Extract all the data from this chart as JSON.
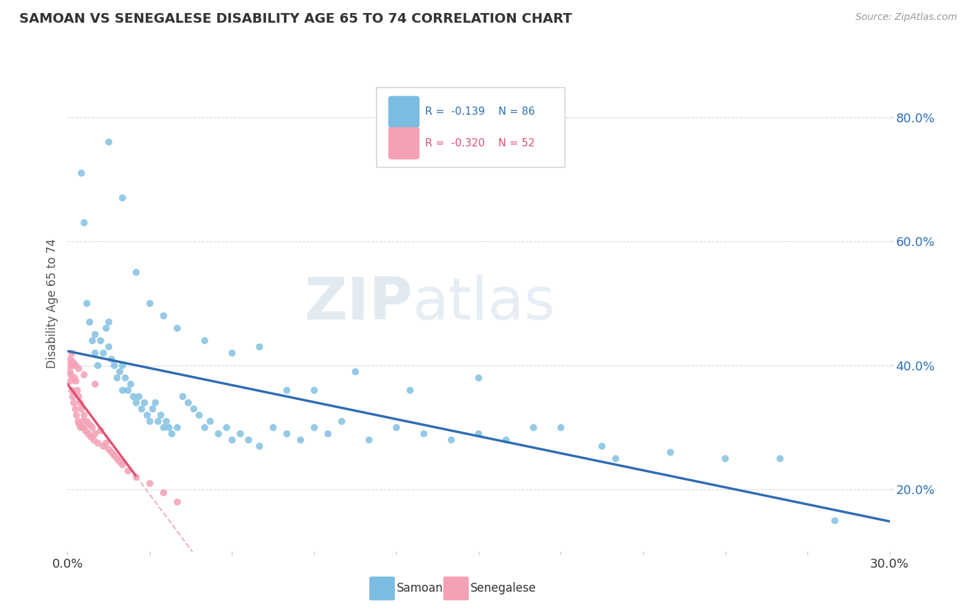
{
  "title": "SAMOAN VS SENEGALESE DISABILITY AGE 65 TO 74 CORRELATION CHART",
  "source_text": "Source: ZipAtlas.com",
  "ylabel": "Disability Age 65 to 74",
  "xlim": [
    0.0,
    30.0
  ],
  "ylim": [
    10.0,
    90.0
  ],
  "yticks": [
    20.0,
    40.0,
    60.0,
    80.0
  ],
  "xticks": [
    0.0,
    3.0,
    6.0,
    9.0,
    12.0,
    15.0,
    18.0,
    21.0,
    24.0,
    27.0,
    30.0
  ],
  "samoan_color": "#7bbde0",
  "senegalese_color": "#f4a0b5",
  "samoan_line_color": "#2e6db4",
  "senegalese_line_color": "#e05070",
  "senegalese_dashed_color": "#f0b0c0",
  "watermark_zip": "ZIP",
  "watermark_atlas": "atlas",
  "samoan_x": [
    0.5,
    0.6,
    0.7,
    0.8,
    0.9,
    1.0,
    1.0,
    1.1,
    1.2,
    1.3,
    1.4,
    1.5,
    1.5,
    1.6,
    1.7,
    1.8,
    1.9,
    2.0,
    2.0,
    2.1,
    2.2,
    2.3,
    2.4,
    2.5,
    2.6,
    2.7,
    2.8,
    2.9,
    3.0,
    3.1,
    3.2,
    3.3,
    3.4,
    3.5,
    3.6,
    3.7,
    3.8,
    4.0,
    4.2,
    4.4,
    4.6,
    4.8,
    5.0,
    5.2,
    5.5,
    5.8,
    6.0,
    6.3,
    6.6,
    7.0,
    7.5,
    8.0,
    8.5,
    9.0,
    9.5,
    10.0,
    11.0,
    12.0,
    13.0,
    14.0,
    15.0,
    16.0,
    18.0,
    20.0,
    22.0,
    24.0,
    26.0,
    28.0,
    1.5,
    2.0,
    2.5,
    3.0,
    3.5,
    4.0,
    5.0,
    6.0,
    7.0,
    8.0,
    9.0,
    10.5,
    12.5,
    15.0,
    17.0,
    19.5
  ],
  "samoan_y": [
    71.0,
    63.0,
    50.0,
    47.0,
    44.0,
    42.0,
    45.0,
    40.0,
    44.0,
    42.0,
    46.0,
    43.0,
    47.0,
    41.0,
    40.0,
    38.0,
    39.0,
    36.0,
    40.0,
    38.0,
    36.0,
    37.0,
    35.0,
    34.0,
    35.0,
    33.0,
    34.0,
    32.0,
    31.0,
    33.0,
    34.0,
    31.0,
    32.0,
    30.0,
    31.0,
    30.0,
    29.0,
    30.0,
    35.0,
    34.0,
    33.0,
    32.0,
    30.0,
    31.0,
    29.0,
    30.0,
    28.0,
    29.0,
    28.0,
    27.0,
    30.0,
    29.0,
    28.0,
    30.0,
    29.0,
    31.0,
    28.0,
    30.0,
    29.0,
    28.0,
    29.0,
    28.0,
    30.0,
    25.0,
    26.0,
    25.0,
    25.0,
    15.0,
    76.0,
    67.0,
    55.0,
    50.0,
    48.0,
    46.0,
    44.0,
    42.0,
    43.0,
    36.0,
    36.0,
    39.0,
    36.0,
    38.0,
    30.0,
    27.0
  ],
  "senegalese_x": [
    0.05,
    0.08,
    0.1,
    0.12,
    0.15,
    0.15,
    0.18,
    0.2,
    0.22,
    0.25,
    0.28,
    0.3,
    0.32,
    0.35,
    0.38,
    0.4,
    0.42,
    0.45,
    0.48,
    0.5,
    0.55,
    0.58,
    0.6,
    0.65,
    0.7,
    0.75,
    0.8,
    0.85,
    0.9,
    0.95,
    1.0,
    1.1,
    1.2,
    1.3,
    1.4,
    1.5,
    1.6,
    1.7,
    1.8,
    1.9,
    2.0,
    2.2,
    2.5,
    3.0,
    3.5,
    4.0,
    0.1,
    0.2,
    0.3,
    0.4,
    0.6,
    1.0
  ],
  "senegalese_y": [
    40.0,
    39.0,
    37.5,
    38.5,
    42.0,
    36.0,
    35.0,
    40.0,
    34.0,
    38.0,
    33.0,
    37.5,
    32.0,
    36.0,
    31.0,
    35.0,
    30.5,
    34.0,
    30.0,
    33.0,
    31.0,
    30.0,
    32.0,
    29.5,
    31.0,
    29.0,
    30.5,
    28.5,
    30.0,
    28.0,
    29.0,
    27.5,
    29.5,
    27.0,
    27.5,
    26.5,
    26.0,
    25.5,
    25.0,
    24.5,
    24.0,
    23.0,
    22.0,
    21.0,
    19.5,
    18.0,
    41.0,
    40.5,
    40.0,
    39.5,
    38.5,
    37.0
  ],
  "sen_solid_end": 2.5,
  "sen_dash_end": 13.0
}
